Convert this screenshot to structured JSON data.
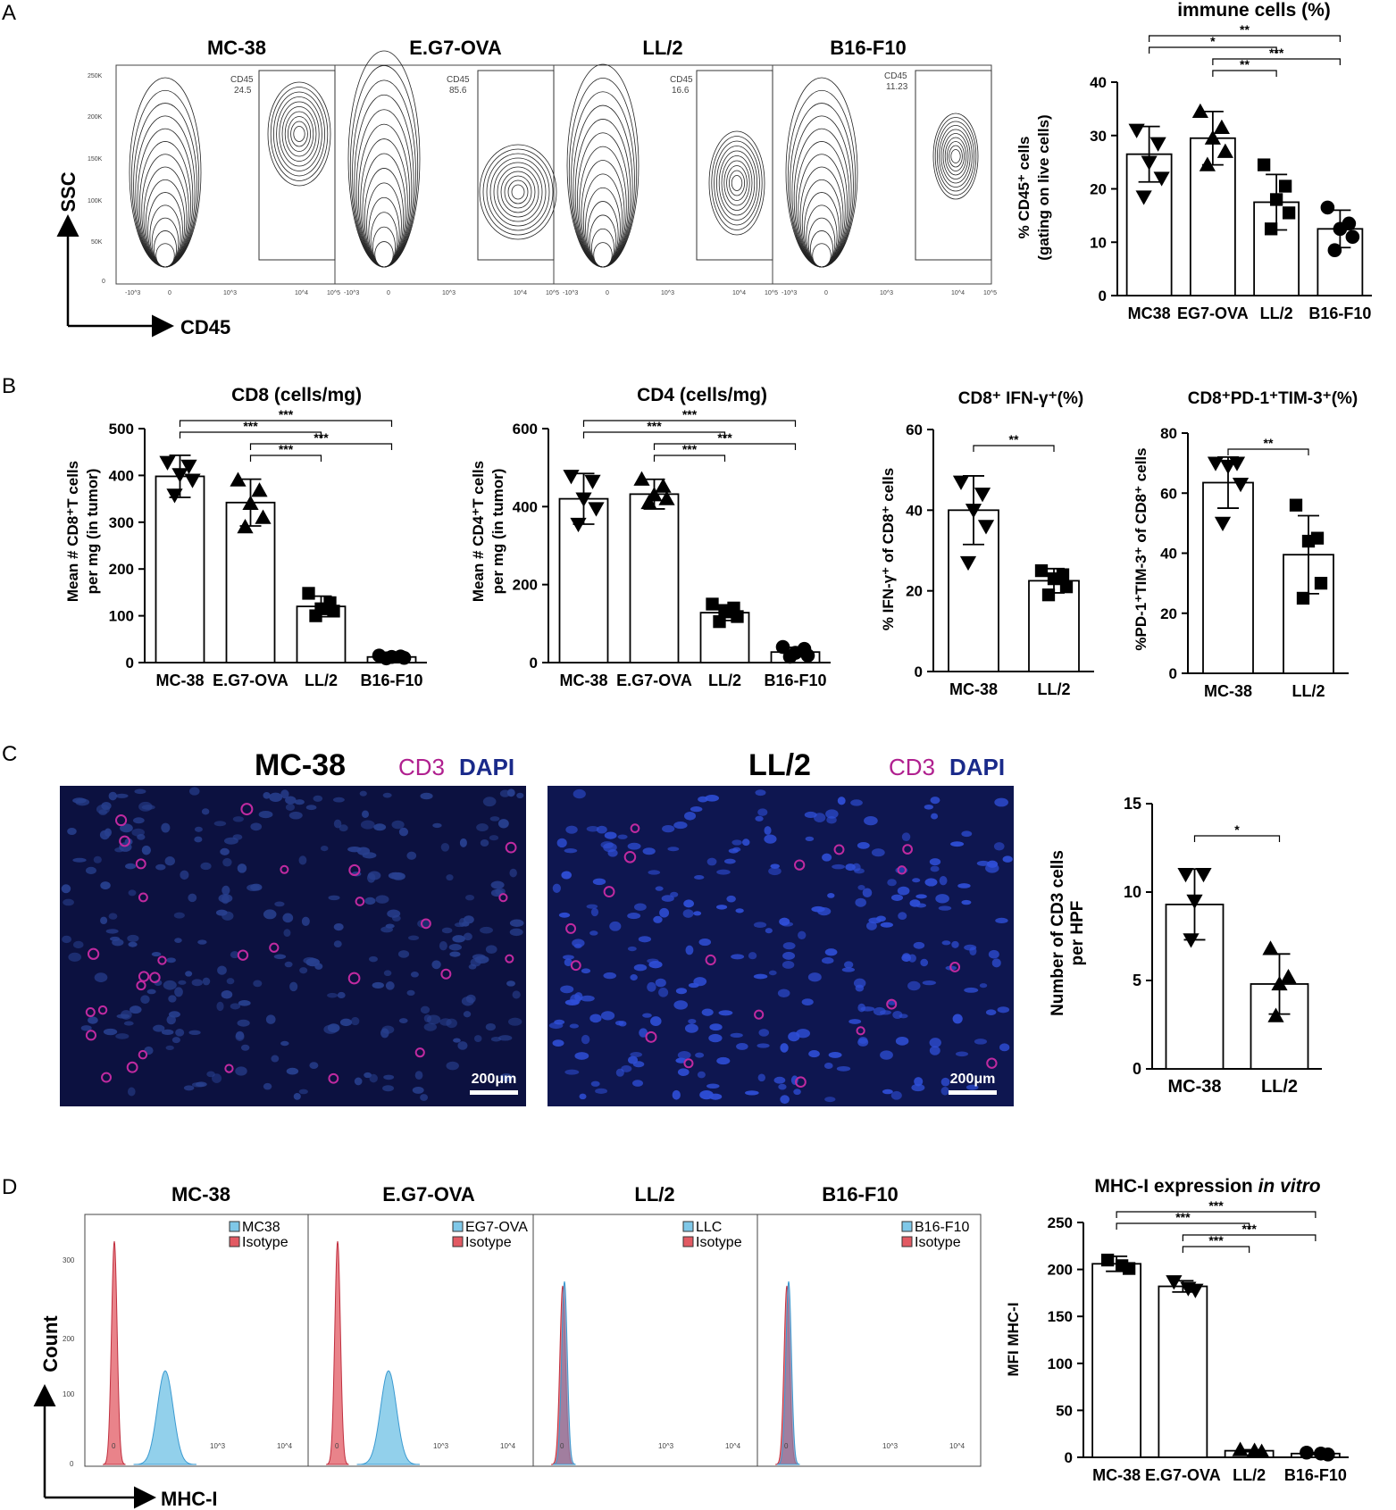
{
  "panels": [
    "A",
    "B",
    "C",
    "D"
  ],
  "flow_A": {
    "titles": [
      "MC-38",
      "E.G7-OVA",
      "LL/2",
      "B16-F10"
    ],
    "gate_label": "CD45",
    "gate_values": [
      "24.5",
      "85.6",
      "16.6",
      "11.23"
    ],
    "x_axis": "CD45",
    "y_axis": "SSC",
    "y_ticks": [
      "250K",
      "200K",
      "150K",
      "100K",
      "50K",
      "0"
    ],
    "x_ticks": [
      "-10^3",
      "0",
      "10^3",
      "10^4",
      "10^5"
    ]
  },
  "flow_D": {
    "titles": [
      "MC-38",
      "E.G7-OVA",
      "LL/2",
      "B16-F10"
    ],
    "legends": [
      [
        "MC38",
        "Isotype"
      ],
      [
        "EG7-OVA",
        "Isotype"
      ],
      [
        "LLC",
        "Isotype"
      ],
      [
        "B16-F10",
        "Isotype"
      ]
    ],
    "x_axis": "MHC-I",
    "y_axis": "Count",
    "y_ticks": [
      "300",
      "200",
      "100",
      "0"
    ],
    "x_ticks": [
      "0",
      "10^3",
      "10^4"
    ],
    "colors": {
      "sample": "#7fc8e8",
      "isotype": "#e25a63",
      "overlap": "#8a7fa8"
    }
  },
  "micro_C": {
    "images": [
      {
        "title": "MC-38",
        "stain1": "CD3",
        "stain2": "DAPI",
        "scale": "200μm"
      },
      {
        "title": "LL/2",
        "stain1": "CD3",
        "stain2": "DAPI",
        "scale": "200μm"
      }
    ],
    "colors": {
      "cd3": "#b0208f",
      "dapi": "#1a2a8a"
    }
  },
  "chart_data": [
    {
      "id": "A_cd45",
      "type": "bar",
      "title": "immune cells (%)",
      "ylabel_lines": [
        "% CD45⁺ cells",
        "(gating on live cells)"
      ],
      "categories": [
        "MC38",
        "EG7-OVA",
        "LL/2",
        "B16-F10"
      ],
      "values": [
        26.5,
        29.5,
        17.5,
        12.5
      ],
      "sd": [
        5.2,
        5.0,
        5.2,
        3.5
      ],
      "markers": [
        "tri-down",
        "tri-up",
        "square",
        "circle"
      ],
      "points": [
        [
          31,
          28.5,
          25,
          22,
          18.5
        ],
        [
          34.5,
          31.5,
          29.5,
          27,
          24.5
        ],
        [
          24.5,
          20.5,
          18,
          15.5,
          12.5
        ],
        [
          16.5,
          13.5,
          12.5,
          11,
          8.5
        ]
      ],
      "ylim": [
        0,
        40
      ],
      "yticks": [
        0,
        10,
        20,
        30,
        40
      ],
      "significance": [
        {
          "from": 0,
          "to": 3,
          "label": "**"
        },
        {
          "from": 0,
          "to": 2,
          "label": "*"
        },
        {
          "from": 1,
          "to": 3,
          "label": "***"
        },
        {
          "from": 1,
          "to": 2,
          "label": "**"
        }
      ]
    },
    {
      "id": "B_cd8",
      "type": "bar",
      "title": "CD8 (cells/mg)",
      "ylabel_lines": [
        "Mean # CD8⁺T cells",
        "per mg  (in tumor)"
      ],
      "categories": [
        "MC-38",
        "E.G7-OVA",
        "LL/2",
        "B16-F10"
      ],
      "values": [
        398,
        342,
        120,
        12
      ],
      "sd": [
        45,
        50,
        22,
        5
      ],
      "markers": [
        "tri-down",
        "tri-up",
        "square",
        "circle"
      ],
      "points": [
        [
          428,
          420,
          402,
          390,
          358
        ],
        [
          390,
          368,
          340,
          310,
          290
        ],
        [
          148,
          128,
          115,
          110,
          100
        ],
        [
          15,
          13,
          12,
          10,
          9
        ]
      ],
      "ylim": [
        0,
        500
      ],
      "yticks": [
        0,
        100,
        200,
        300,
        400,
        500
      ],
      "significance": [
        {
          "from": 0,
          "to": 3,
          "label": "***"
        },
        {
          "from": 0,
          "to": 2,
          "label": "***"
        },
        {
          "from": 1,
          "to": 3,
          "label": "***"
        },
        {
          "from": 1,
          "to": 2,
          "label": "***"
        }
      ]
    },
    {
      "id": "B_cd4",
      "type": "bar",
      "title": "CD4 (cells/mg)",
      "ylabel_lines": [
        "Mean # CD4⁺T cells",
        "per mg  (in tumor)"
      ],
      "categories": [
        "MC-38",
        "E.G7-OVA",
        "LL/2",
        "B16-F10"
      ],
      "values": [
        420,
        432,
        128,
        27
      ],
      "sd": [
        65,
        38,
        20,
        12
      ],
      "markers": [
        "tri-down",
        "tri-up",
        "square",
        "circle"
      ],
      "points": [
        [
          478,
          465,
          420,
          395,
          355
        ],
        [
          470,
          452,
          430,
          420,
          410
        ],
        [
          150,
          140,
          130,
          118,
          105
        ],
        [
          40,
          35,
          25,
          18,
          15
        ]
      ],
      "ylim": [
        0,
        600
      ],
      "yticks": [
        0,
        200,
        400,
        600
      ],
      "significance": [
        {
          "from": 0,
          "to": 3,
          "label": "***"
        },
        {
          "from": 0,
          "to": 2,
          "label": "***"
        },
        {
          "from": 1,
          "to": 3,
          "label": "***"
        },
        {
          "from": 1,
          "to": 2,
          "label": "***"
        }
      ]
    },
    {
      "id": "B_ifng",
      "type": "bar",
      "title": "CD8⁺ IFN-γ⁺(%)",
      "ylabel_lines": [
        "% IFN-γ⁺ of CD8⁺ cells"
      ],
      "categories": [
        "MC-38",
        "LL/2"
      ],
      "values": [
        40,
        22.5
      ],
      "sd": [
        8.5,
        3
      ],
      "markers": [
        "tri-down",
        "square"
      ],
      "points": [
        [
          47,
          44,
          40,
          36,
          27
        ],
        [
          25,
          24,
          23,
          21,
          19
        ]
      ],
      "ylim": [
        0,
        60
      ],
      "yticks": [
        0,
        20,
        40,
        60
      ],
      "significance": [
        {
          "from": 0,
          "to": 1,
          "label": "**"
        }
      ]
    },
    {
      "id": "B_pd1tim3",
      "type": "bar",
      "title": "CD8⁺PD-1⁺TIM-3⁺(%)",
      "ylabel_lines": [
        "%PD-1⁺TIM-3⁺ of CD8⁺ cells"
      ],
      "categories": [
        "MC-38",
        "LL/2"
      ],
      "values": [
        63.5,
        39.5
      ],
      "sd": [
        8.5,
        13
      ],
      "markers": [
        "tri-down",
        "square"
      ],
      "points": [
        [
          70,
          70,
          69,
          63,
          50
        ],
        [
          56,
          45,
          44,
          30,
          25
        ]
      ],
      "ylim": [
        0,
        80
      ],
      "yticks": [
        0,
        20,
        40,
        60,
        80
      ],
      "significance": [
        {
          "from": 0,
          "to": 1,
          "label": "**"
        }
      ]
    },
    {
      "id": "C_cd3",
      "type": "bar",
      "title": "",
      "ylabel_lines": [
        "Number of CD3 cells",
        "per HPF"
      ],
      "categories": [
        "MC-38",
        "LL/2"
      ],
      "values": [
        9.3,
        4.8
      ],
      "sd": [
        2.0,
        1.7
      ],
      "markers": [
        "tri-down",
        "tri-up"
      ],
      "points": [
        [
          11,
          11,
          9.5,
          7.3
        ],
        [
          6.8,
          5.2,
          4.8,
          3.0
        ]
      ],
      "ylim": [
        0,
        15
      ],
      "yticks": [
        0,
        5,
        10,
        15
      ],
      "significance": [
        {
          "from": 0,
          "to": 1,
          "label": "*"
        }
      ]
    },
    {
      "id": "D_mhc",
      "type": "bar",
      "title": "MHC-I expression in vitro",
      "ylabel_lines": [
        "MFI MHC-I"
      ],
      "categories": [
        "MC-38",
        "E.G7-OVA",
        "LL/2",
        "B16-F10"
      ],
      "values": [
        206,
        182,
        7,
        4
      ],
      "sd": [
        8,
        6,
        1,
        1
      ],
      "markers": [
        "square",
        "tri-down",
        "tri-up",
        "circle"
      ],
      "points": [
        [
          210,
          204,
          201
        ],
        [
          187,
          180,
          178
        ],
        [
          8,
          7,
          6
        ],
        [
          5,
          4,
          3
        ]
      ],
      "ylim": [
        0,
        250
      ],
      "yticks": [
        0,
        50,
        100,
        150,
        200,
        250
      ],
      "significance": [
        {
          "from": 0,
          "to": 3,
          "label": "***"
        },
        {
          "from": 0,
          "to": 2,
          "label": "***"
        },
        {
          "from": 1,
          "to": 3,
          "label": "***"
        },
        {
          "from": 1,
          "to": 2,
          "label": "***"
        }
      ]
    }
  ]
}
